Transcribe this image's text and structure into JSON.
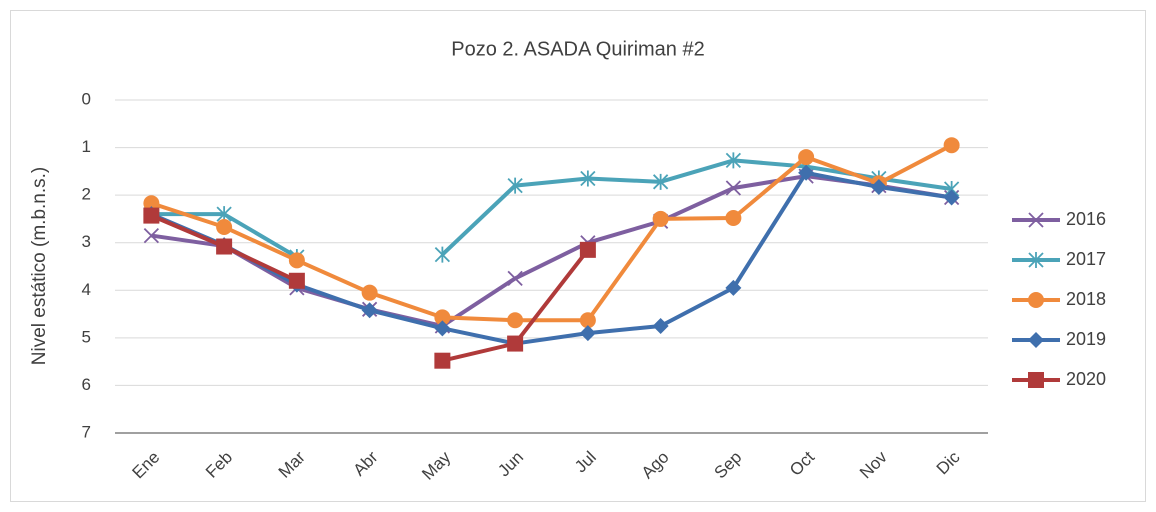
{
  "chart_data": {
    "type": "line",
    "title": "Pozo 2. ASADA Quiriman #2",
    "y_label": "Nivel estático (m.b.n.s.)",
    "categories": [
      "Ene",
      "Feb",
      "Mar",
      "Abr",
      "May",
      "Jun",
      "Jul",
      "Ago",
      "Sep",
      "Oct",
      "Nov",
      "Dic"
    ],
    "series": [
      {
        "name": "2016",
        "color": "#7e5fa0",
        "marker": "x",
        "values": [
          2.85,
          3.07,
          3.95,
          4.4,
          4.75,
          3.75,
          3.0,
          2.55,
          1.85,
          1.6,
          1.8,
          2.05
        ]
      },
      {
        "name": "2017",
        "color": "#4ba3b8",
        "marker": "asterisk",
        "values": [
          2.4,
          2.4,
          3.3,
          null,
          3.25,
          1.8,
          1.65,
          1.72,
          1.27,
          1.4,
          1.65,
          1.87
        ]
      },
      {
        "name": "2018",
        "color": "#f08a3c",
        "marker": "circle",
        "values": [
          2.17,
          2.67,
          3.37,
          4.05,
          4.57,
          4.63,
          4.63,
          2.5,
          2.48,
          1.2,
          1.75,
          0.95
        ]
      },
      {
        "name": "2019",
        "color": "#3f6fad",
        "marker": "diamond",
        "values": [
          2.4,
          3.05,
          3.88,
          4.42,
          4.8,
          5.12,
          4.9,
          4.75,
          3.95,
          1.53,
          1.83,
          2.05
        ]
      },
      {
        "name": "2020",
        "color": "#b03a3a",
        "marker": "square",
        "values": [
          2.43,
          3.08,
          3.8,
          null,
          5.48,
          5.12,
          3.15,
          null,
          null,
          null,
          null,
          null
        ]
      }
    ],
    "ylim": [
      0,
      7
    ],
    "yticks": [
      0,
      1,
      2,
      3,
      4,
      5,
      6,
      7
    ],
    "y_inverted": true,
    "grid": true,
    "legend": "right"
  }
}
